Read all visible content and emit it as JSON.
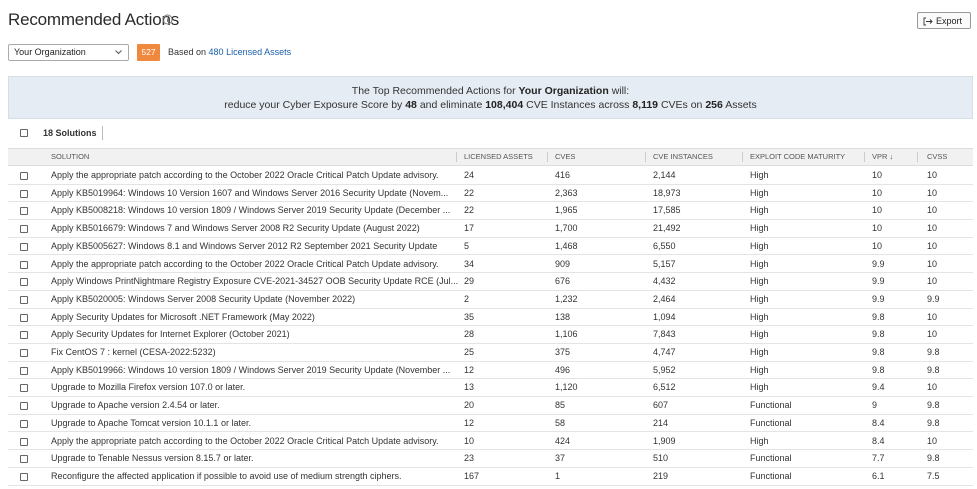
{
  "header": {
    "title": "Recommended Actions",
    "export": "Export"
  },
  "filter": {
    "scope": "Your Organization",
    "count": "527",
    "based_on": "Based on",
    "assets_link": "480 Licensed Assets"
  },
  "banner": {
    "line1": [
      "The Top Recommended Actions for",
      "Your Organization",
      "will:"
    ],
    "line2": [
      "reduce your Cyber Exposure Score by",
      "48",
      "and eliminate",
      "108,404",
      "CVE Instances across",
      "8,119",
      "CVEs on",
      "256",
      "Assets"
    ]
  },
  "table": {
    "selected_count": "18 Solutions",
    "columns": [
      "SOLUTION",
      "LICENSED ASSETS",
      "CVES",
      "CVE INSTANCES",
      "EXPLOIT CODE MATURITY",
      "VPR ↓",
      "CVSS"
    ],
    "rows": [
      [
        "Apply the appropriate patch according to the October 2022 Oracle Critical Patch Update advisory.",
        "24",
        "416",
        "2,144",
        "High",
        "10",
        "10"
      ],
      [
        "Apply KB5019964: Windows 10 Version 1607 and Windows Server 2016 Security Update (Novem...",
        "22",
        "2,363",
        "18,973",
        "High",
        "10",
        "10"
      ],
      [
        "Apply KB5008218: Windows 10 version 1809 / Windows Server 2019 Security Update (December ...",
        "22",
        "1,965",
        "17,585",
        "High",
        "10",
        "10"
      ],
      [
        "Apply KB5016679: Windows 7 and Windows Server 2008 R2 Security Update (August 2022)",
        "17",
        "1,700",
        "21,492",
        "High",
        "10",
        "10"
      ],
      [
        "Apply KB5005627: Windows 8.1 and Windows Server 2012 R2 September 2021 Security Update",
        "5",
        "1,468",
        "6,550",
        "High",
        "10",
        "10"
      ],
      [
        "Apply the appropriate patch according to the October 2022 Oracle Critical Patch Update advisory.",
        "34",
        "909",
        "5,157",
        "High",
        "9.9",
        "10"
      ],
      [
        "Apply Windows PrintNightmare Registry Exposure CVE-2021-34527 OOB Security Update RCE (Jul...",
        "29",
        "676",
        "4,432",
        "High",
        "9.9",
        "10"
      ],
      [
        "Apply KB5020005: Windows Server 2008 Security Update (November 2022)",
        "2",
        "1,232",
        "2,464",
        "High",
        "9.9",
        "9.9"
      ],
      [
        "Apply Security Updates for Microsoft .NET Framework (May 2022)",
        "35",
        "138",
        "1,094",
        "High",
        "9.8",
        "10"
      ],
      [
        "Apply Security Updates for Internet Explorer (October 2021)",
        "28",
        "1,106",
        "7,843",
        "High",
        "9.8",
        "10"
      ],
      [
        "Fix CentOS 7 : kernel (CESA-2022:5232)",
        "25",
        "375",
        "4,747",
        "High",
        "9.8",
        "9.8"
      ],
      [
        "Apply KB5019966: Windows 10 version 1809 / Windows Server 2019 Security Update (November ...",
        "12",
        "496",
        "5,952",
        "High",
        "9.8",
        "9.8"
      ],
      [
        "Upgrade to Mozilla Firefox version 107.0 or later.",
        "13",
        "1,120",
        "6,512",
        "High",
        "9.4",
        "10"
      ],
      [
        "Upgrade to Apache version 2.4.54 or later.",
        "20",
        "85",
        "607",
        "Functional",
        "9",
        "9.8"
      ],
      [
        "Upgrade to Apache Tomcat version 10.1.1 or later.",
        "12",
        "58",
        "214",
        "Functional",
        "8.4",
        "9.8"
      ],
      [
        "Apply the appropriate patch according to the October 2022 Oracle Critical Patch Update advisory.",
        "10",
        "424",
        "1,909",
        "High",
        "8.4",
        "10"
      ],
      [
        "Upgrade to Tenable Nessus version 8.15.7 or later.",
        "23",
        "37",
        "510",
        "Functional",
        "7.7",
        "9.8"
      ],
      [
        "Reconfigure the affected application if possible to avoid use of medium strength ciphers.",
        "167",
        "1",
        "219",
        "Functional",
        "6.1",
        "7.5"
      ]
    ]
  }
}
